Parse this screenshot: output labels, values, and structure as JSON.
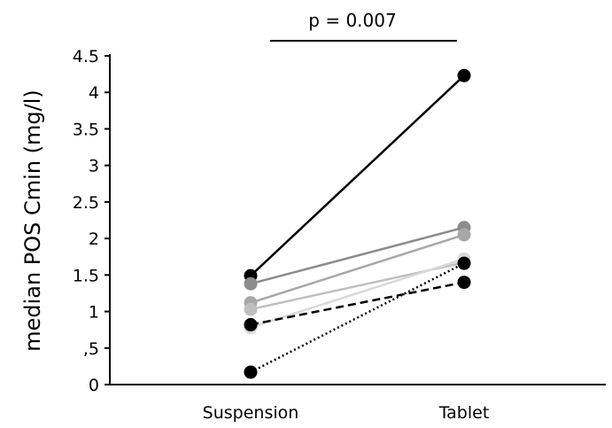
{
  "chart_data": {
    "type": "line",
    "title": "",
    "xlabel": "",
    "ylabel": "median POS Cmin (mg/l)",
    "categories": [
      "Suspension",
      "Tablet"
    ],
    "ylim": [
      0,
      4.5
    ],
    "yticks": [
      0,
      0.5,
      1,
      1.5,
      2,
      2.5,
      3,
      3.5,
      4,
      4.5
    ],
    "ytick_labels": [
      "0",
      ",5",
      "1",
      "1.5",
      "2",
      "2.5",
      "3",
      "3.5",
      "4",
      "4.5"
    ],
    "annotation": "p = 0.007",
    "grid": false,
    "legend": "none",
    "series": [
      {
        "values": [
          1.49,
          4.23
        ],
        "color": "#000000",
        "line_style": "solid"
      },
      {
        "values": [
          1.38,
          2.15
        ],
        "color": "#8c8c8c",
        "line_style": "solid"
      },
      {
        "values": [
          1.12,
          2.05
        ],
        "color": "#a8a8a8",
        "line_style": "solid"
      },
      {
        "values": [
          1.03,
          1.67
        ],
        "color": "#bfbfbf",
        "line_style": "solid"
      },
      {
        "values": [
          0.78,
          1.72
        ],
        "color": "#d9d9d9",
        "line_style": "solid"
      },
      {
        "values": [
          0.82,
          1.4
        ],
        "color": "#000000",
        "line_style": "dashed"
      },
      {
        "values": [
          0.17,
          1.66
        ],
        "color": "#000000",
        "line_style": "dotted"
      }
    ]
  }
}
